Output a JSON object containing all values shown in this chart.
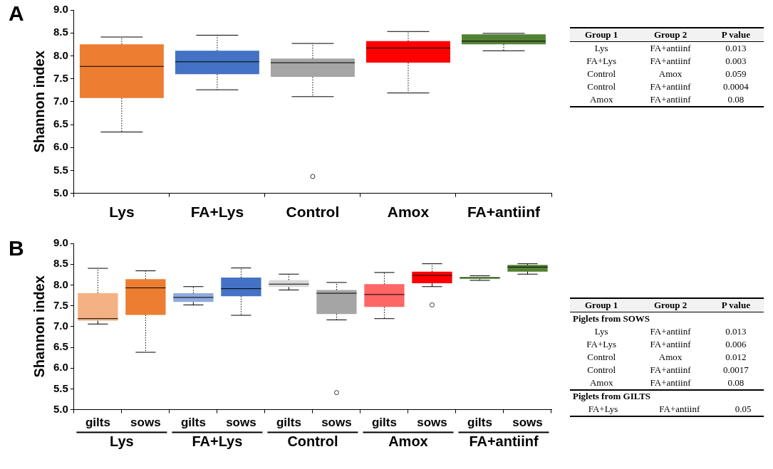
{
  "chart_data": [
    {
      "type": "box",
      "title": "A",
      "ylabel": "Shannon index",
      "categories": [
        "Lys",
        "FA+Lys",
        "Control",
        "Amox",
        "FA+antiinf"
      ],
      "colors": [
        "#ed7d31",
        "#4472c4",
        "#a5a5a5",
        "#ff0000",
        "#548235"
      ],
      "line_style": "dotted",
      "ylim": [
        5,
        9
      ],
      "yticks": [
        {
          "value": 5,
          "label": "5.0"
        },
        {
          "value": 5.5,
          "label": "5.5"
        },
        {
          "value": 6,
          "label": "6.0"
        },
        {
          "value": 6.5,
          "label": "6.5"
        },
        {
          "value": 7,
          "label": "7.0"
        },
        {
          "value": 7.5,
          "label": "7.5"
        },
        {
          "value": 8,
          "label": "8.0"
        },
        {
          "value": 8.5,
          "label": "8.5"
        },
        {
          "value": 9,
          "label": "9.0"
        }
      ],
      "boxes": [
        {
          "low": 6.34,
          "q1": 7.08,
          "median": 7.77,
          "q3": 8.25,
          "high": 8.41
        },
        {
          "low": 7.26,
          "q1": 7.6,
          "median": 7.87,
          "q3": 8.11,
          "high": 8.45
        },
        {
          "low": 7.11,
          "q1": 7.54,
          "median": 7.85,
          "q3": 7.94,
          "high": 8.27,
          "outliers": [
            5.37
          ]
        },
        {
          "low": 7.19,
          "q1": 7.85,
          "median": 8.17,
          "q3": 8.32,
          "high": 8.53
        },
        {
          "low": 8.11,
          "q1": 8.25,
          "median": 8.32,
          "q3": 8.47,
          "high": 8.49
        }
      ]
    },
    {
      "type": "other",
      "categories": [
        "Group 1",
        "Group 2",
        "P value"
      ],
      "annotations": [
        "Lys",
        "FA+antiinf",
        "0.013",
        "FA+Lys",
        "FA+antiinf",
        "0.003",
        "Control",
        "Amox",
        "0.059",
        "Control",
        "FA+antiinf",
        "0.0004",
        "Amox",
        "FA+antiinf",
        "0.08"
      ]
    },
    {
      "type": "box",
      "title": "B",
      "ylabel": "Shannon index",
      "categories": [
        "gilts",
        "sows",
        "gilts",
        "sows",
        "gilts",
        "sows",
        "gilts",
        "sows",
        "gilts",
        "sows"
      ],
      "annotations": [
        "Lys",
        "FA+Lys",
        "Control",
        "Amox",
        "FA+antiinf"
      ],
      "colors": [
        "#f4b183",
        "#ed7d31",
        "#8faadc",
        "#4472c4",
        "#d9d9d9",
        "#a5a5a5",
        "#ff6666",
        "#ff0000",
        "#a9d18e",
        "#548235"
      ],
      "line_style": "dotted",
      "ylim": [
        5,
        9
      ],
      "yticks": [
        {
          "value": 5,
          "label": "5.0"
        },
        {
          "value": 5.5,
          "label": "5.5"
        },
        {
          "value": 6,
          "label": "6.0"
        },
        {
          "value": 6.5,
          "label": "6.5"
        },
        {
          "value": 7,
          "label": "7.0"
        },
        {
          "value": 7.5,
          "label": "7.5"
        },
        {
          "value": 8,
          "label": "8.0"
        },
        {
          "value": 8.5,
          "label": "8.5"
        },
        {
          "value": 9,
          "label": "9.0"
        }
      ],
      "boxes": [
        {
          "low": 7.06,
          "q1": 7.14,
          "median": 7.19,
          "q3": 7.8,
          "high": 8.4
        },
        {
          "low": 6.38,
          "q1": 7.28,
          "median": 7.93,
          "q3": 8.14,
          "high": 8.34
        },
        {
          "low": 7.52,
          "q1": 7.59,
          "median": 7.7,
          "q3": 7.8,
          "high": 7.96
        },
        {
          "low": 7.27,
          "q1": 7.73,
          "median": 7.91,
          "q3": 8.18,
          "high": 8.41
        },
        {
          "low": 7.88,
          "q1": 7.95,
          "median": 8.02,
          "q3": 8.12,
          "high": 8.26
        },
        {
          "low": 7.16,
          "q1": 7.3,
          "median": 7.8,
          "q3": 7.88,
          "high": 8.06,
          "outliers": [
            5.41
          ]
        },
        {
          "low": 7.19,
          "q1": 7.47,
          "median": 7.77,
          "q3": 8.02,
          "high": 8.3
        },
        {
          "low": 7.96,
          "q1": 8.04,
          "median": 8.23,
          "q3": 8.32,
          "high": 8.51,
          "outliers": [
            7.52
          ]
        },
        {
          "low": 8.11,
          "q1": 8.14,
          "median": 8.17,
          "q3": 8.2,
          "high": 8.22
        },
        {
          "low": 8.26,
          "q1": 8.32,
          "median": 8.43,
          "q3": 8.48,
          "high": 8.51
        }
      ]
    },
    {
      "type": "other",
      "categories": [
        "Group 1",
        "Group 2",
        "P value"
      ],
      "title": "Piglets from SOWS",
      "annotations": [
        "Lys",
        "FA+antiinf",
        "0.013",
        "FA+Lys",
        "FA+antiinf",
        "0.006",
        "Control",
        "Amox",
        "0.012",
        "Control",
        "FA+antiinf",
        "0.0017",
        "Amox",
        "FA+antiinf",
        "0.08"
      ]
    },
    {
      "type": "other",
      "title": "Piglets from GILTS",
      "annotations": [
        "FA+Lys",
        "FA+antiinf",
        "0.05"
      ]
    }
  ]
}
